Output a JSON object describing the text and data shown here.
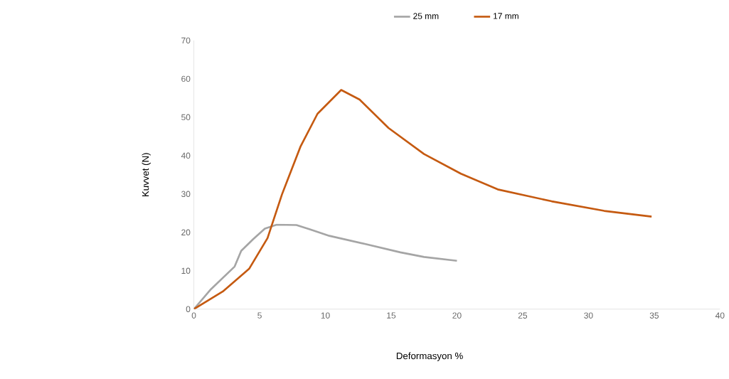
{
  "chart_data": {
    "type": "line",
    "xlabel": "Deformasyon %",
    "ylabel": "Kuvvet (N)",
    "xlim": [
      0,
      40
    ],
    "ylim": [
      0,
      70
    ],
    "xticks": [
      0,
      5,
      10,
      15,
      20,
      25,
      30,
      35,
      40
    ],
    "yticks": [
      0,
      10,
      20,
      30,
      40,
      50,
      60,
      70
    ],
    "grid": false,
    "legend": "top",
    "marker": "none",
    "line_style": "solid",
    "series": [
      {
        "name": "25 mm",
        "color": "#a5a5a5",
        "x": [
          0,
          1.3,
          3.1,
          3.6,
          4.5,
          5.4,
          6.3,
          7.8,
          8.9,
          10.3,
          13,
          15.7,
          17.5,
          20
        ],
        "values": [
          0,
          5.2,
          11.1,
          15.2,
          18.2,
          21,
          22,
          21.9,
          20.7,
          19.1,
          17,
          14.8,
          13.6,
          12.6
        ]
      },
      {
        "name": "17 mm",
        "color": "#c55a11",
        "x": [
          0,
          2.2,
          4.2,
          5.6,
          6.7,
          8.1,
          9.4,
          11.2,
          12.6,
          14.8,
          17.5,
          20.3,
          23.1,
          27.2,
          31.2,
          34.8
        ],
        "values": [
          0,
          4.6,
          10.5,
          18.5,
          29.9,
          42.3,
          50.9,
          57.1,
          54.6,
          47.2,
          40.4,
          35.3,
          31.2,
          28.1,
          25.6,
          24.1
        ]
      }
    ]
  }
}
